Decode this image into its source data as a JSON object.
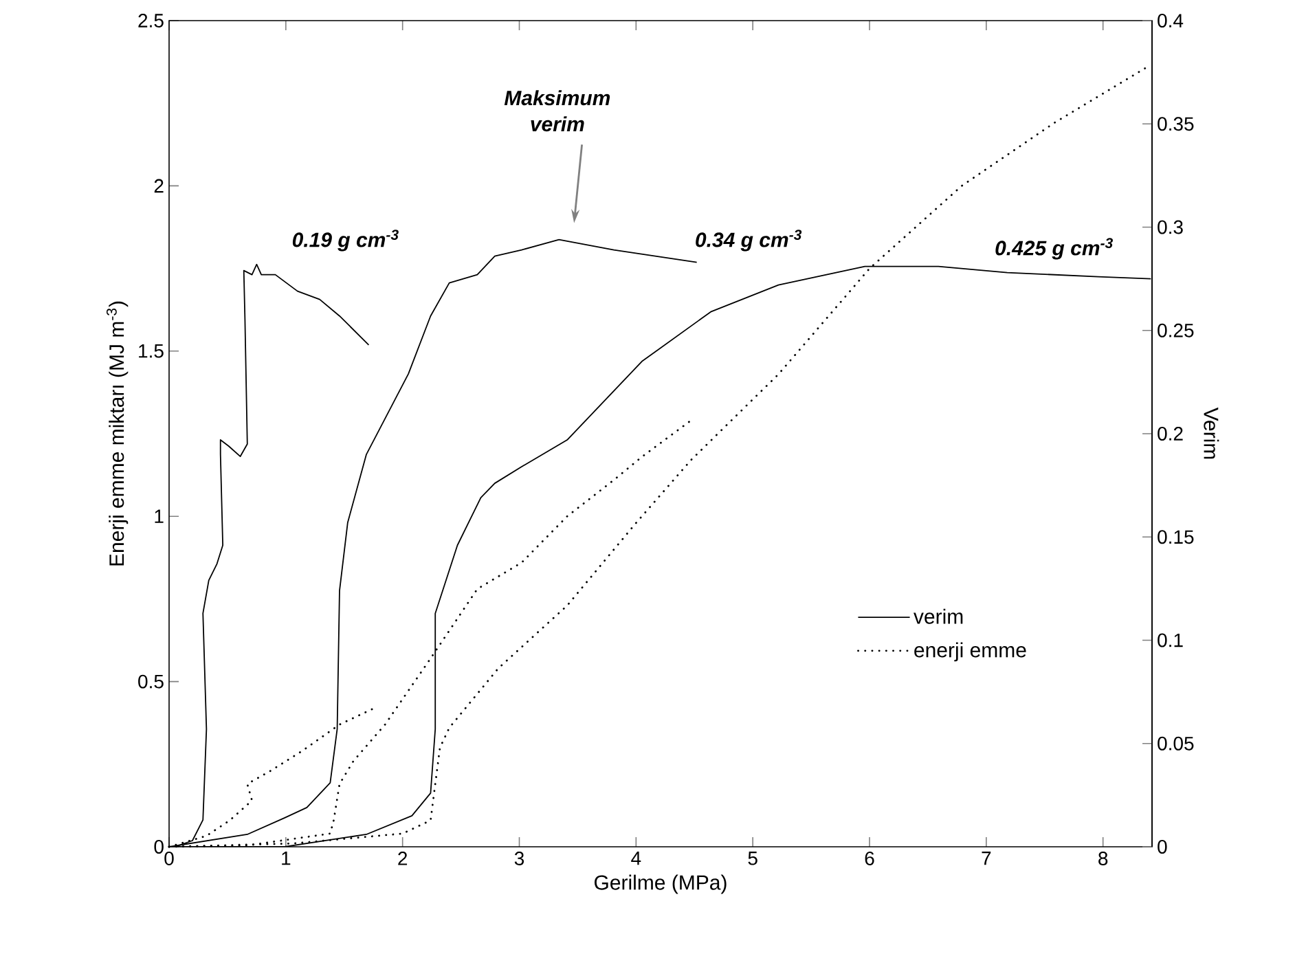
{
  "chart_data": {
    "type": "line",
    "xlabel": "Gerilme (MPa)",
    "ylabel": "Enerji emme miktarı (MJ m$^{-3}$)",
    "y2label": "Verim",
    "xlim": [
      0,
      8.42
    ],
    "xticks": [
      0,
      1,
      2,
      3,
      4,
      5,
      6,
      7,
      8
    ],
    "ylim": [
      0,
      2.5
    ],
    "yticks": [
      0,
      0.5,
      1,
      1.5,
      2,
      2.5
    ],
    "y2lim": [
      0,
      0.4
    ],
    "y2ticks": [
      0,
      0.05,
      0.1,
      0.15,
      0.2,
      0.25,
      0.3,
      0.35,
      0.4
    ],
    "legend": "bottom right",
    "marker": "none",
    "series": [
      {
        "name": "verim",
        "axis": "y2",
        "color": "#000000",
        "line_style": "solid",
        "x": [
          0,
          0.05,
          0.2,
          0.29,
          0.32,
          0.29,
          0.34,
          0.41,
          0.46,
          0.44,
          0.44,
          0.51,
          0.61,
          0.67,
          0.65,
          0.64,
          0.71,
          0.75,
          0.79,
          0.91,
          1.1,
          1.29,
          1.46,
          1.71
        ],
        "values": [
          0,
          0,
          0.003,
          0.013,
          0.057,
          0.113,
          0.129,
          0.137,
          0.146,
          0.19,
          0.197,
          0.194,
          0.189,
          0.195,
          0.255,
          0.279,
          0.277,
          0.282,
          0.277,
          0.277,
          0.269,
          0.265,
          0.257,
          0.243
        ]
      },
      {
        "axis": "y2",
        "color": "#000000",
        "line_style": "solid",
        "x": [
          0,
          0.67,
          0.99,
          1.18,
          1.38,
          1.44,
          1.46,
          1.53,
          1.69,
          2.05,
          2.24,
          2.4,
          2.64,
          2.79,
          3.02,
          3.34,
          3.81,
          4.52
        ],
        "values": [
          0,
          0.006,
          0.014,
          0.019,
          0.031,
          0.057,
          0.124,
          0.157,
          0.19,
          0.229,
          0.257,
          0.273,
          0.277,
          0.286,
          0.289,
          0.294,
          0.289,
          0.283
        ]
      },
      {
        "axis": "y2",
        "color": "#000000",
        "line_style": "solid",
        "x": [
          0,
          0.99,
          1.69,
          2.08,
          2.24,
          2.28,
          2.28,
          2.47,
          2.67,
          2.79,
          3.02,
          3.41,
          4.05,
          4.64,
          5.22,
          5.96,
          6.59,
          7.18,
          7.96,
          8.41
        ],
        "values": [
          0,
          0,
          0.006,
          0.015,
          0.026,
          0.057,
          0.113,
          0.146,
          0.169,
          0.176,
          0.184,
          0.197,
          0.235,
          0.259,
          0.272,
          0.281,
          0.281,
          0.278,
          0.276,
          0.275
        ]
      },
      {
        "name": "enerji emme",
        "color": "#000000",
        "line_style": "dotted",
        "x": [
          0,
          0.32,
          0.52,
          0.71,
          0.67,
          0.87,
          1.14,
          1.46,
          1.76
        ],
        "values": [
          0,
          0.033,
          0.08,
          0.14,
          0.19,
          0.23,
          0.29,
          0.37,
          0.42
        ]
      },
      {
        "color": "#000000",
        "line_style": "dotted",
        "x": [
          0,
          0.67,
          1.38,
          1.41,
          1.46,
          1.58,
          1.85,
          2.24,
          2.64,
          3.02,
          3.41,
          3.81,
          4.05,
          4.47
        ],
        "values": [
          0,
          0.004,
          0.04,
          0.08,
          0.19,
          0.26,
          0.37,
          0.57,
          0.78,
          0.86,
          1.0,
          1.11,
          1.18,
          1.29
        ]
      },
      {
        "color": "#000000",
        "line_style": "dotted",
        "x": [
          0,
          1.06,
          2.0,
          2.24,
          2.28,
          2.32,
          2.4,
          2.82,
          3.41,
          4.0,
          4.47,
          5.22,
          6.0,
          6.79,
          7.58,
          8.38
        ],
        "values": [
          0,
          0.01,
          0.04,
          0.08,
          0.19,
          0.3,
          0.36,
          0.54,
          0.73,
          0.98,
          1.17,
          1.43,
          1.75,
          2.0,
          2.19,
          2.36
        ]
      }
    ],
    "annotations": [
      "0.19 g cm$^{-3}$",
      "Maksimum verim",
      "0.34 g cm$^{-3}$",
      "0.425 g cm$^{-3}$"
    ]
  }
}
